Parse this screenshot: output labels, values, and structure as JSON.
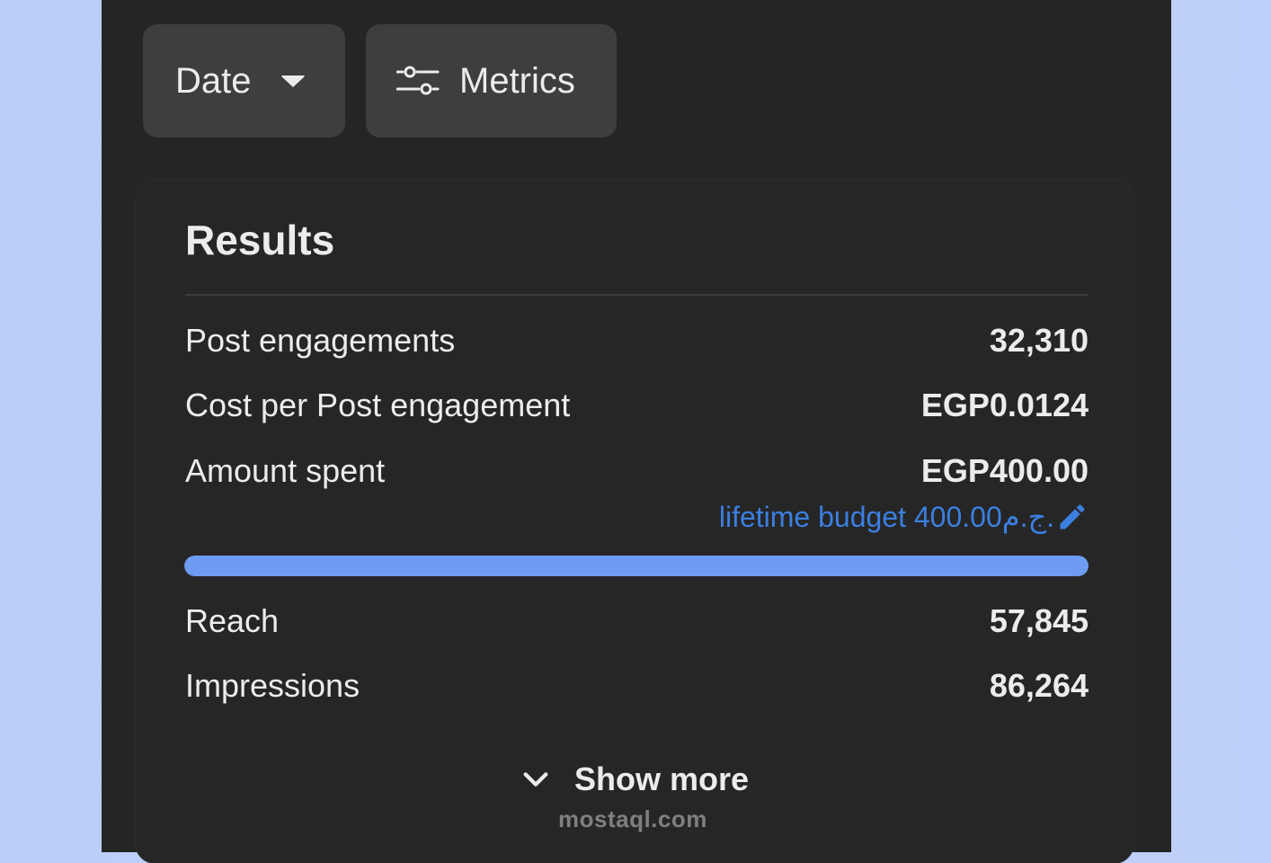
{
  "toolbar": {
    "date_label": "Date",
    "metrics_label": "Metrics"
  },
  "results": {
    "title": "Results",
    "rows": [
      {
        "label": "Post engagements",
        "value": "32,310"
      },
      {
        "label": "Cost per Post engagement",
        "value": "EGP0.0124"
      },
      {
        "label": "Amount spent",
        "value": "EGP400.00"
      }
    ],
    "budget_text": "lifetime budget 400.00ج.م.",
    "budget_progress_percent": 100,
    "rows_after": [
      {
        "label": "Reach",
        "value": "57,845"
      },
      {
        "label": "Impressions",
        "value": "86,264"
      }
    ],
    "show_more_label": "Show more"
  },
  "watermark": "mostaql.com",
  "colors": {
    "panel_bg": "#252526",
    "chip_bg": "#3e3e3f",
    "accent_blue": "#3b7fe0",
    "progress_fill": "#6d9cf2",
    "page_bg": "#c2d4fa"
  },
  "icons": {
    "date_caret": "caret-down-icon",
    "metrics": "sliders-icon",
    "budget_edit": "pencil-icon",
    "show_more": "chevron-down-icon"
  }
}
